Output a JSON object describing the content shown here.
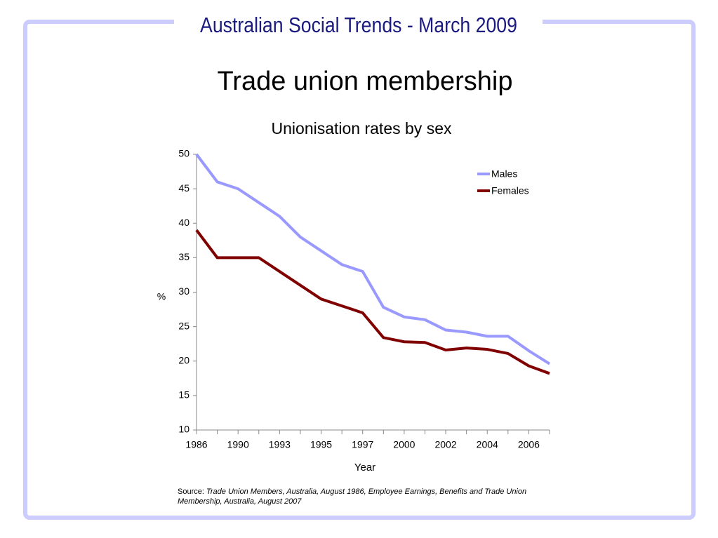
{
  "header": "Australian Social Trends - March 2009",
  "slide_title": "Trade union membership",
  "source": {
    "label": "Source:",
    "text": "Trade Union Members, Australia, August 1986, Employee Earnings, Benefits and Trade Union Membership, Australia, August 2007"
  },
  "chart_data": {
    "type": "line",
    "title": "Unionisation rates by sex",
    "x_label": "Year",
    "y_label": "%",
    "categories": [
      "1986",
      null,
      "1990",
      null,
      "1993",
      null,
      "1995",
      null,
      "1997",
      null,
      "2000",
      null,
      "2002",
      null,
      "2004",
      null,
      "2006",
      null
    ],
    "series": [
      {
        "name": "Males",
        "color": "#9999ff",
        "values": [
          50,
          46,
          45,
          43,
          41,
          38,
          36,
          34,
          33,
          27.8,
          26.4,
          26,
          24.5,
          24.2,
          23.6,
          23.6,
          21.5,
          19.6
        ]
      },
      {
        "name": "Females",
        "color": "#800000",
        "values": [
          39,
          35,
          35,
          35,
          33,
          31,
          29,
          28,
          27,
          23.4,
          22.8,
          22.7,
          21.6,
          21.9,
          21.7,
          21.1,
          19.3,
          18.2
        ]
      }
    ],
    "ylim": [
      10,
      50
    ],
    "yticks": [
      10,
      15,
      20,
      25,
      30,
      35,
      40,
      45,
      50
    ],
    "grid": false,
    "legend": "upper right"
  }
}
